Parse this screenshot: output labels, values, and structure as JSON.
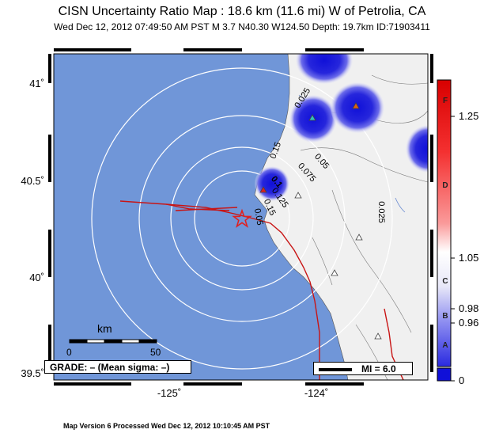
{
  "title": "CISN Uncertainty Ratio Map : 18.6 km (11.6 mi) W of Petrolia, CA",
  "subtitle": "Wed Dec 12, 2012 07:49:50 AM PST   M 3.7   N40.30 W124.50   Depth: 19.7km   ID:71903411",
  "footer": "Map Version 6 Processed Wed Dec 12, 2012 10:10:45 AM PST",
  "lat_labels": [
    "41˚",
    "40.5˚",
    "40˚",
    "39.5˚"
  ],
  "lon_labels": [
    "-125˚",
    "-124˚"
  ],
  "scale_bar": {
    "unit": "km",
    "start": "0",
    "end": "50"
  },
  "grade_text": "GRADE: – (Mean sigma: –)",
  "mi_text": "MI = 6.0",
  "contour_labels": [
    "0.025",
    "0.05",
    "0.075",
    "0.1",
    "0.125",
    "0.15",
    "0.15",
    "0.025",
    "0.05"
  ],
  "colorbar": {
    "values": [
      "1.25",
      "1.05",
      "0.98",
      "0.96",
      "0"
    ],
    "letters": [
      "F",
      "D",
      "C",
      "B",
      "A"
    ]
  },
  "colors": {
    "ocean": "#7096d8",
    "land": "#f0f0f0",
    "high_uncertainty": "#1010d8",
    "fault": "#c81414",
    "epicenter": "#e02020"
  },
  "icons": {
    "epicenter": "star-icon",
    "station": "triangle-icon"
  }
}
